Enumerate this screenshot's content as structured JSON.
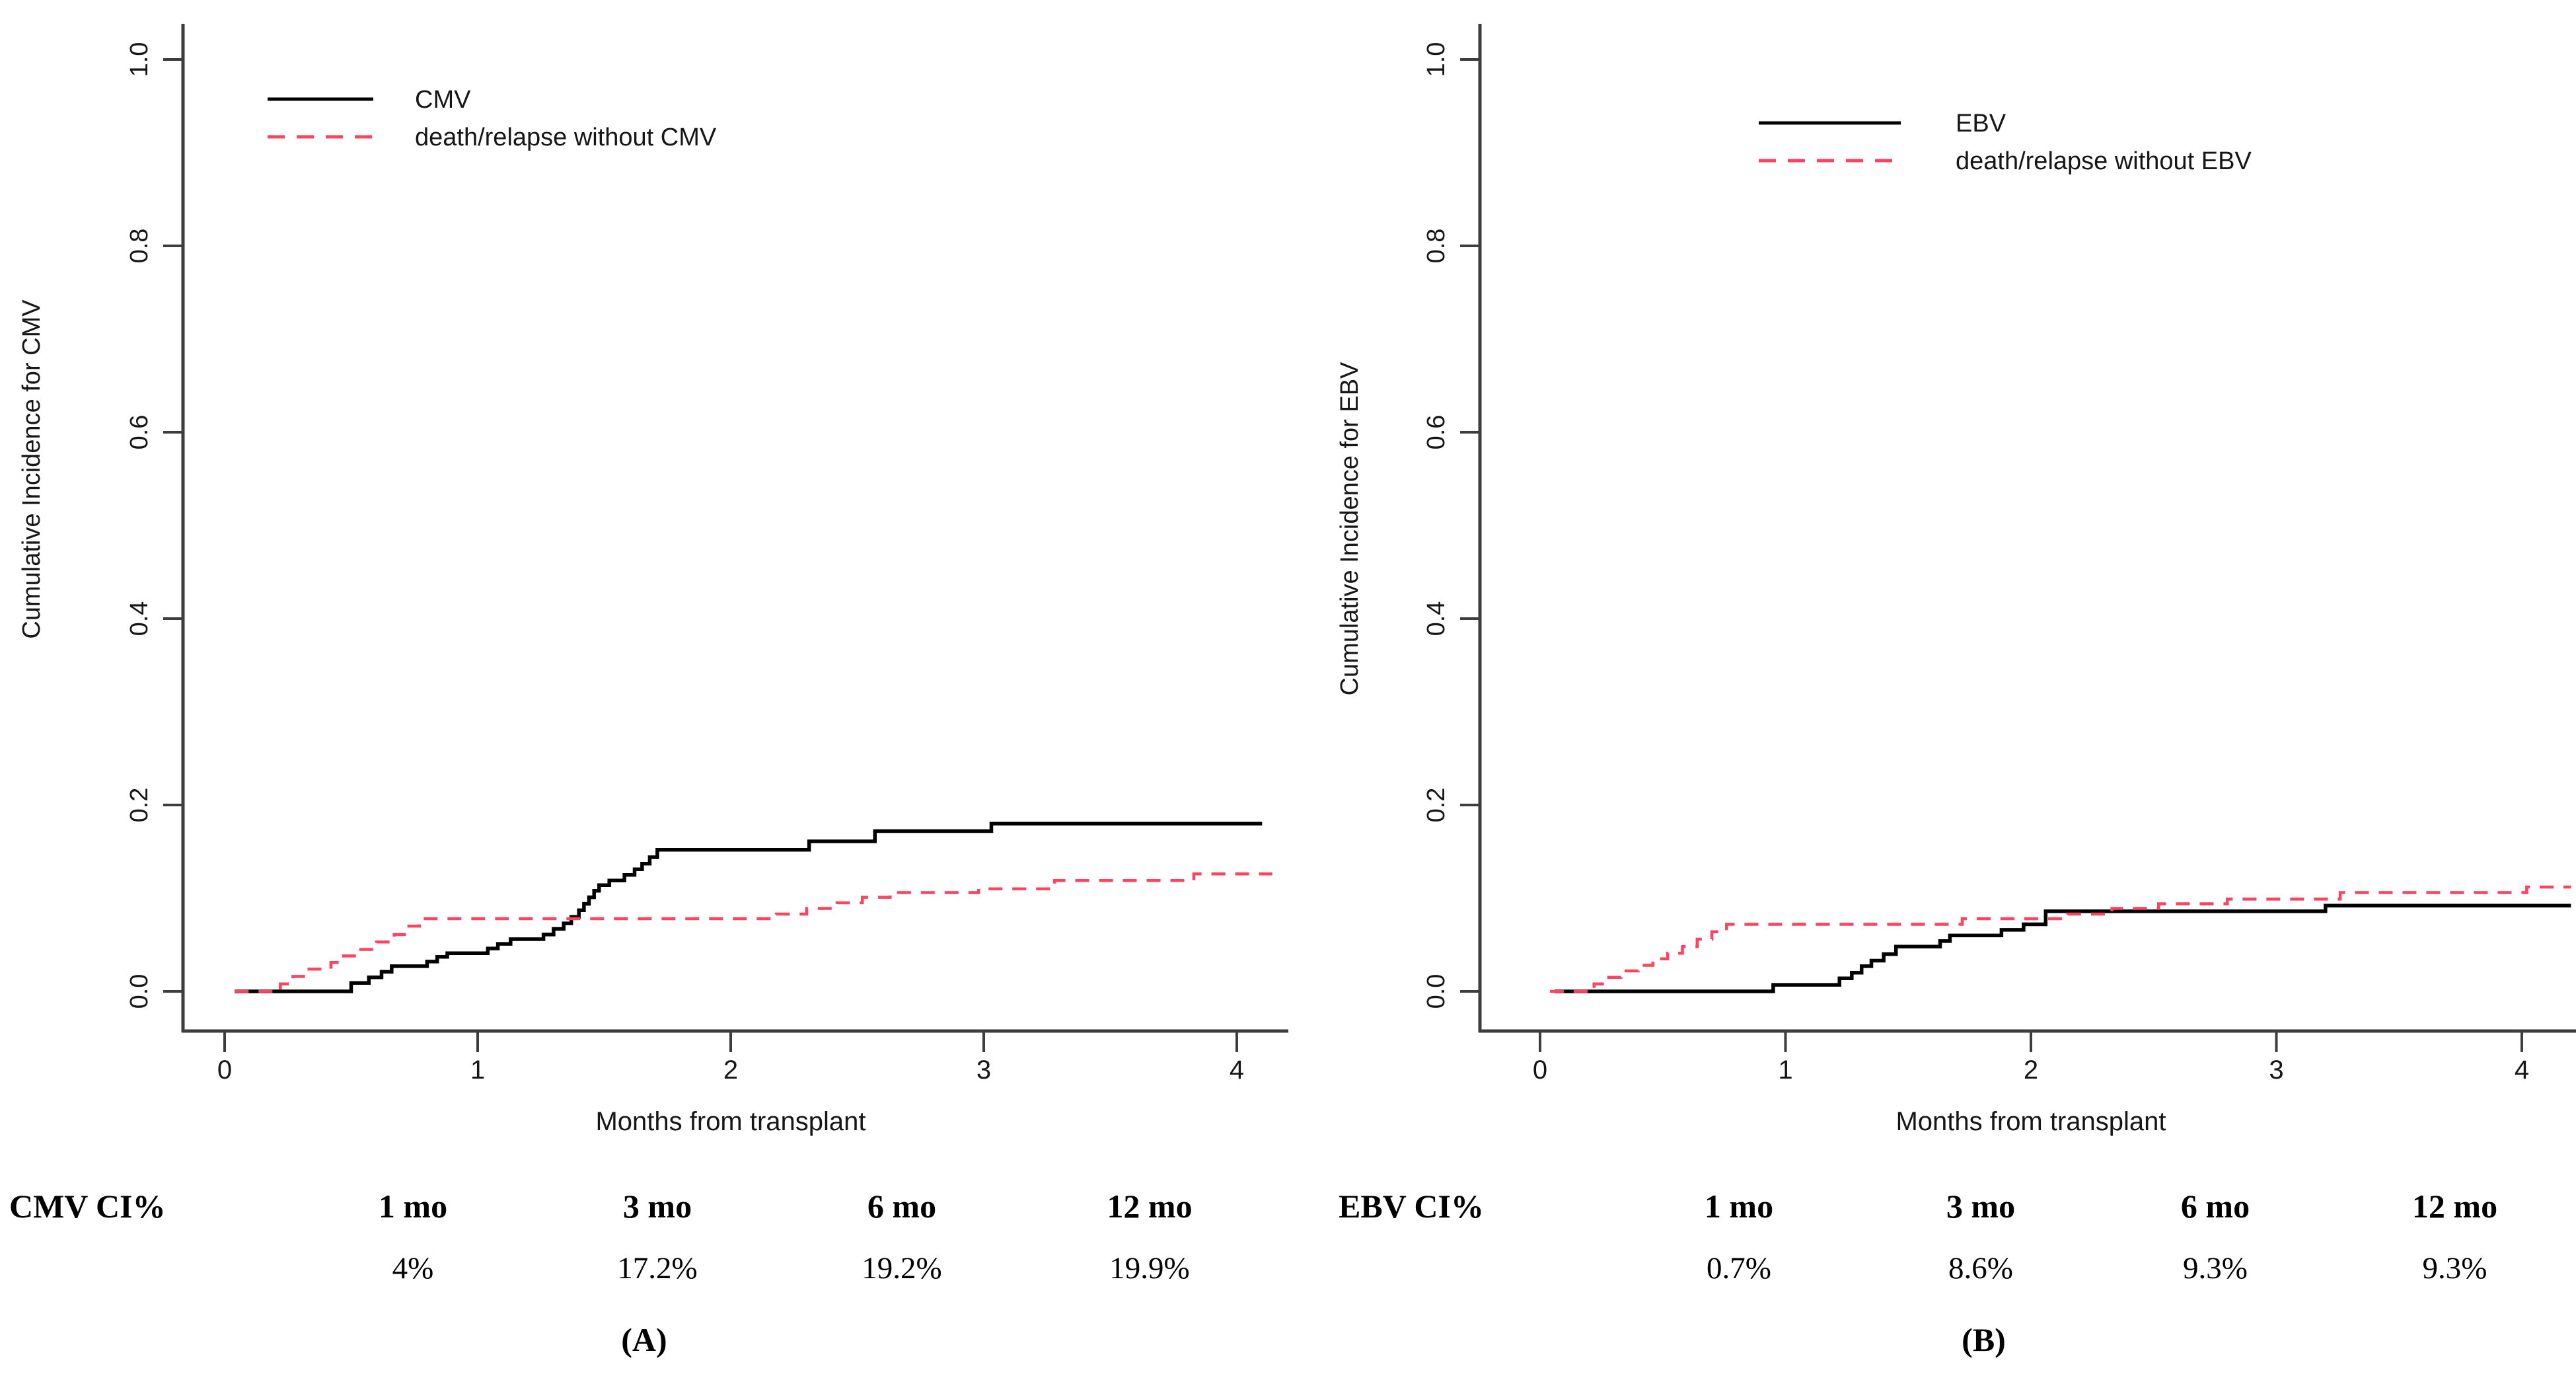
{
  "figure": {
    "background": "#ffffff",
    "axis_color": "#3d3d3d",
    "text_color": "#161616"
  },
  "chart_data": [
    {
      "type": "line",
      "subtype": "cumulative-incidence-step",
      "panel": "A",
      "caption": "(A)",
      "xlabel": "Months from transplant",
      "ylabel": "Cumulative Incidence for CMV",
      "xlim": [
        0,
        4.2
      ],
      "ylim": [
        0,
        1.0
      ],
      "x_ticks": [
        "0",
        "1",
        "2",
        "3",
        "4"
      ],
      "y_ticks": [
        "0.0",
        "0.2",
        "0.4",
        "0.6",
        "0.8",
        "1.0"
      ],
      "grid": "off",
      "legend_position": "upper-left-inside",
      "legend": [
        {
          "label": "CMV",
          "color": "#000000",
          "dash": false
        },
        {
          "label": "death/relapse without CMV",
          "color": "#fb4460",
          "dash": true
        }
      ],
      "series": [
        {
          "name": "CMV",
          "color": "#000000",
          "dash": false,
          "x_end": 4.1,
          "points": [
            [
              0.04,
              0
            ],
            [
              0.5,
              0.009
            ],
            [
              0.57,
              0.015
            ],
            [
              0.62,
              0.021
            ],
            [
              0.66,
              0.027
            ],
            [
              0.8,
              0.032
            ],
            [
              0.84,
              0.037
            ],
            [
              0.88,
              0.041
            ],
            [
              1.04,
              0.046
            ],
            [
              1.08,
              0.051
            ],
            [
              1.13,
              0.056
            ],
            [
              1.26,
              0.061
            ],
            [
              1.3,
              0.067
            ],
            [
              1.34,
              0.073
            ],
            [
              1.37,
              0.08
            ],
            [
              1.4,
              0.087
            ],
            [
              1.42,
              0.094
            ],
            [
              1.44,
              0.101
            ],
            [
              1.46,
              0.108
            ],
            [
              1.48,
              0.114
            ],
            [
              1.52,
              0.119
            ],
            [
              1.58,
              0.125
            ],
            [
              1.62,
              0.131
            ],
            [
              1.65,
              0.137
            ],
            [
              1.68,
              0.144
            ],
            [
              1.71,
              0.152
            ],
            [
              2.31,
              0.161
            ],
            [
              2.57,
              0.172
            ],
            [
              3.03,
              0.18
            ]
          ]
        },
        {
          "name": "death/relapse without CMV",
          "color": "#fb4460",
          "dash": true,
          "x_end": 4.14,
          "points": [
            [
              0.04,
              0
            ],
            [
              0.22,
              0.008
            ],
            [
              0.27,
              0.016
            ],
            [
              0.32,
              0.024
            ],
            [
              0.42,
              0.031
            ],
            [
              0.47,
              0.038
            ],
            [
              0.52,
              0.045
            ],
            [
              0.6,
              0.053
            ],
            [
              0.67,
              0.061
            ],
            [
              0.72,
              0.07
            ],
            [
              0.77,
              0.078
            ],
            [
              2.18,
              0.083
            ],
            [
              2.3,
              0.089
            ],
            [
              2.42,
              0.095
            ],
            [
              2.52,
              0.101
            ],
            [
              2.63,
              0.106
            ],
            [
              2.98,
              0.11
            ],
            [
              3.28,
              0.119
            ],
            [
              3.83,
              0.126
            ]
          ]
        }
      ],
      "summary_table": {
        "row_label": "CMV CI%",
        "columns": [
          "1 mo",
          "3 mo",
          "6 mo",
          "12 mo"
        ],
        "values": [
          "4%",
          "17.2%",
          "19.2%",
          "19.9%"
        ]
      }
    },
    {
      "type": "line",
      "subtype": "cumulative-incidence-step",
      "panel": "B",
      "caption": "(B)",
      "xlabel": "Months from transplant",
      "ylabel": "Cumulative Incidence for EBV",
      "xlim": [
        0,
        4.2
      ],
      "ylim": [
        0,
        1.0
      ],
      "x_ticks": [
        "0",
        "1",
        "2",
        "3",
        "4"
      ],
      "y_ticks": [
        "0.0",
        "0.2",
        "0.4",
        "0.6",
        "0.8",
        "1.0"
      ],
      "grid": "off",
      "legend_position": "upper-left-inside",
      "legend": [
        {
          "label": "EBV",
          "color": "#000000",
          "dash": false
        },
        {
          "label": "death/relapse without EBV",
          "color": "#fb4460",
          "dash": true
        }
      ],
      "series": [
        {
          "name": "EBV",
          "color": "#000000",
          "dash": false,
          "x_end": 4.2,
          "points": [
            [
              0.06,
              0
            ],
            [
              0.95,
              0.007
            ],
            [
              1.22,
              0.014
            ],
            [
              1.27,
              0.02
            ],
            [
              1.31,
              0.027
            ],
            [
              1.35,
              0.033
            ],
            [
              1.4,
              0.04
            ],
            [
              1.45,
              0.048
            ],
            [
              1.63,
              0.054
            ],
            [
              1.67,
              0.06
            ],
            [
              1.88,
              0.066
            ],
            [
              1.97,
              0.072
            ],
            [
              2.06,
              0.086
            ],
            [
              3.2,
              0.092
            ]
          ]
        },
        {
          "name": "death/relapse without EBV",
          "color": "#fb4460",
          "dash": true,
          "x_end": 4.2,
          "points": [
            [
              0.04,
              0
            ],
            [
              0.22,
              0.008
            ],
            [
              0.27,
              0.015
            ],
            [
              0.33,
              0.022
            ],
            [
              0.4,
              0.028
            ],
            [
              0.46,
              0.035
            ],
            [
              0.52,
              0.041
            ],
            [
              0.58,
              0.048
            ],
            [
              0.64,
              0.056
            ],
            [
              0.7,
              0.064
            ],
            [
              0.76,
              0.072
            ],
            [
              1.72,
              0.078
            ],
            [
              2.15,
              0.083
            ],
            [
              2.33,
              0.089
            ],
            [
              2.52,
              0.094
            ],
            [
              2.8,
              0.099
            ],
            [
              3.26,
              0.106
            ],
            [
              4.02,
              0.112
            ]
          ]
        }
      ],
      "summary_table": {
        "row_label": "EBV CI%",
        "columns": [
          "1 mo",
          "3 mo",
          "6 mo",
          "12 mo"
        ],
        "values": [
          "0.7%",
          "8.6%",
          "9.3%",
          "9.3%"
        ]
      }
    }
  ]
}
